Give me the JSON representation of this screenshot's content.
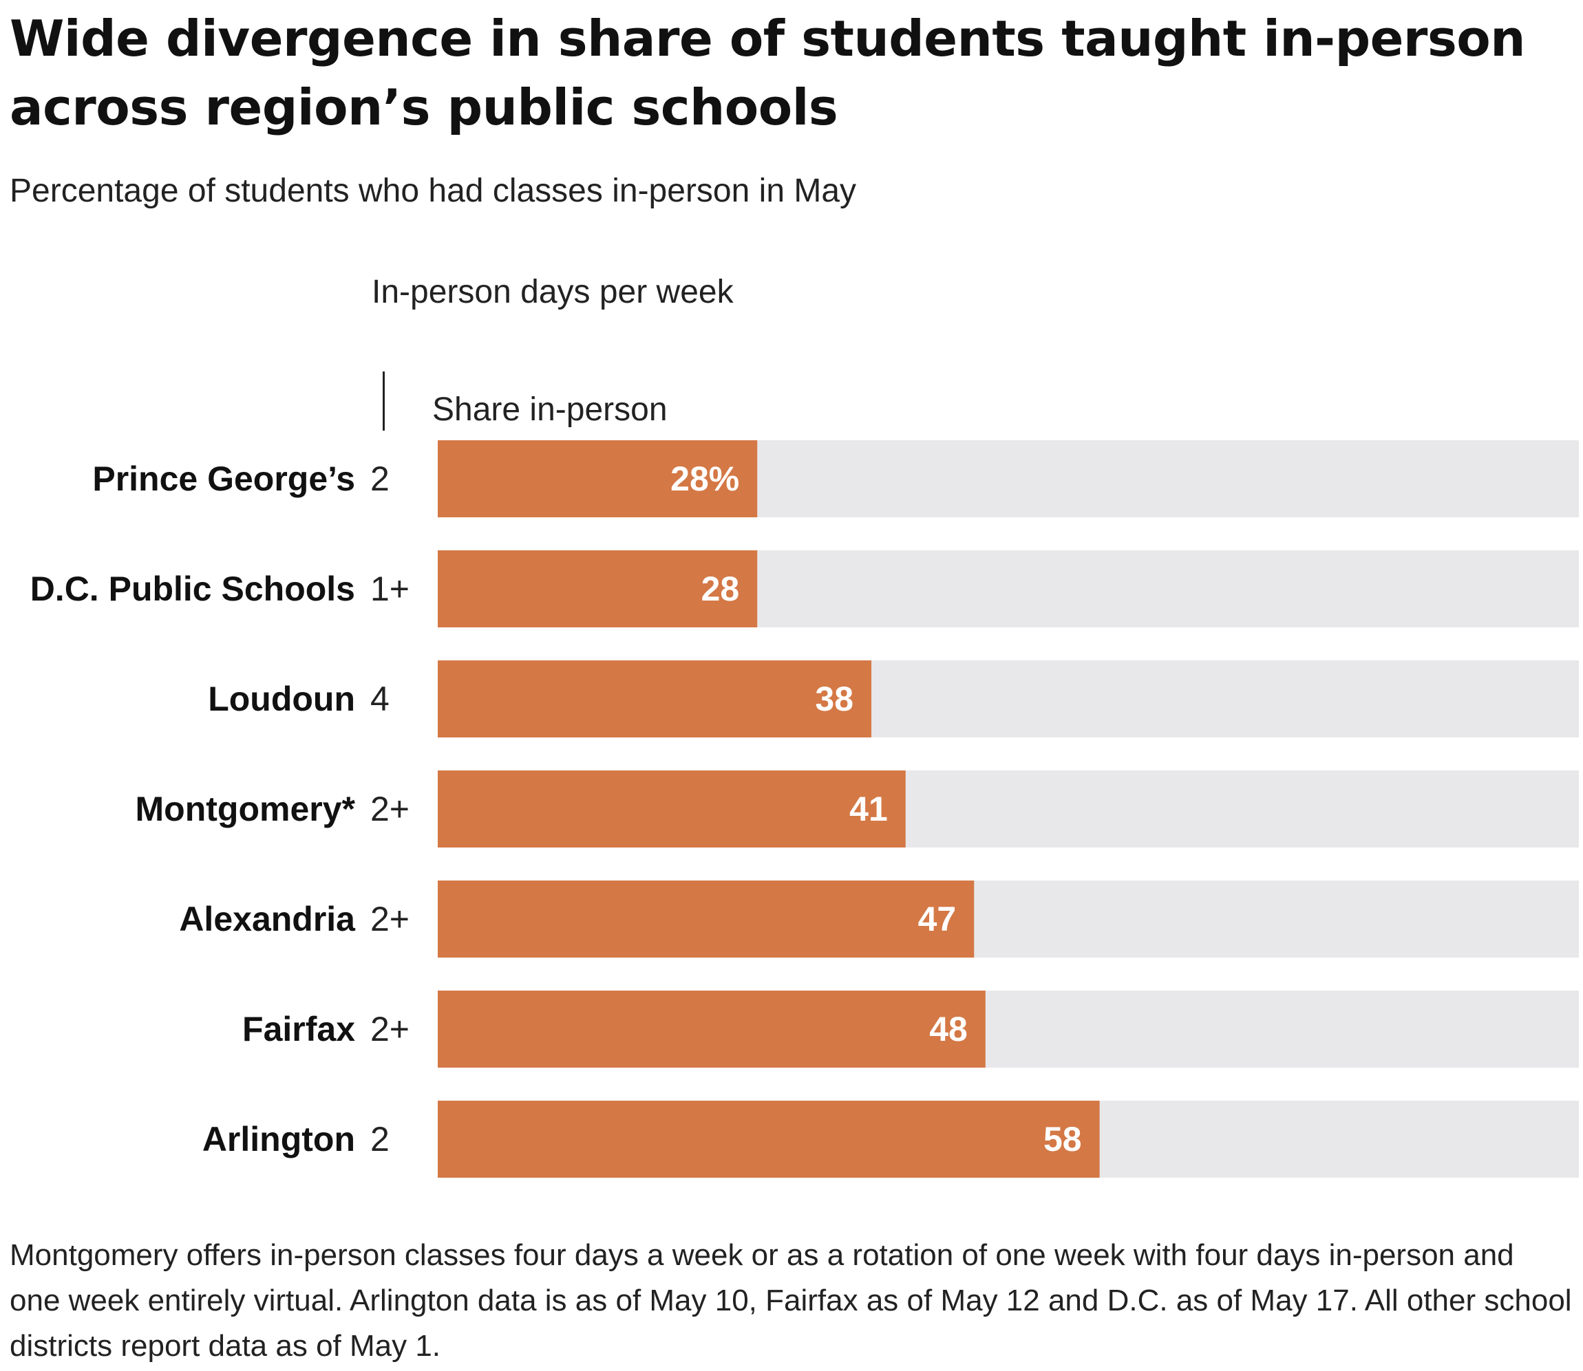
{
  "title": "Wide divergence in share of students taught in-person across region’s public schools",
  "subtitle": "Percentage of students who had classes in-person in May",
  "column_headers": {
    "days": "In-person days per week",
    "share": "Share in-person"
  },
  "footnote": "Montgomery offers in-person classes four days a week or as a rotation of one week with four days in-person and one week entirely virtual. Arlington data is as of May 10, Fairfax as of May 12 and D.C. as of May 17. All other school districts report data as of May 1.",
  "colors": {
    "bar": "#d47845",
    "track": "#e8e8ea",
    "value_label": "#ffffff"
  },
  "chart_data": {
    "type": "bar",
    "orientation": "horizontal",
    "categories": [
      "Prince George’s",
      "D.C. Public Schools",
      "Loudoun",
      "Montgomery*",
      "Alexandria",
      "Fairfax",
      "Arlington"
    ],
    "days_per_week": [
      "2",
      "1+",
      "4",
      "2+",
      "2+",
      "2+",
      "2"
    ],
    "values": [
      28,
      28,
      38,
      41,
      47,
      48,
      58
    ],
    "value_labels": [
      "28%",
      "28",
      "38",
      "41",
      "47",
      "48",
      "58"
    ],
    "xlim": [
      0,
      100
    ],
    "grid": false,
    "legend": "none"
  }
}
